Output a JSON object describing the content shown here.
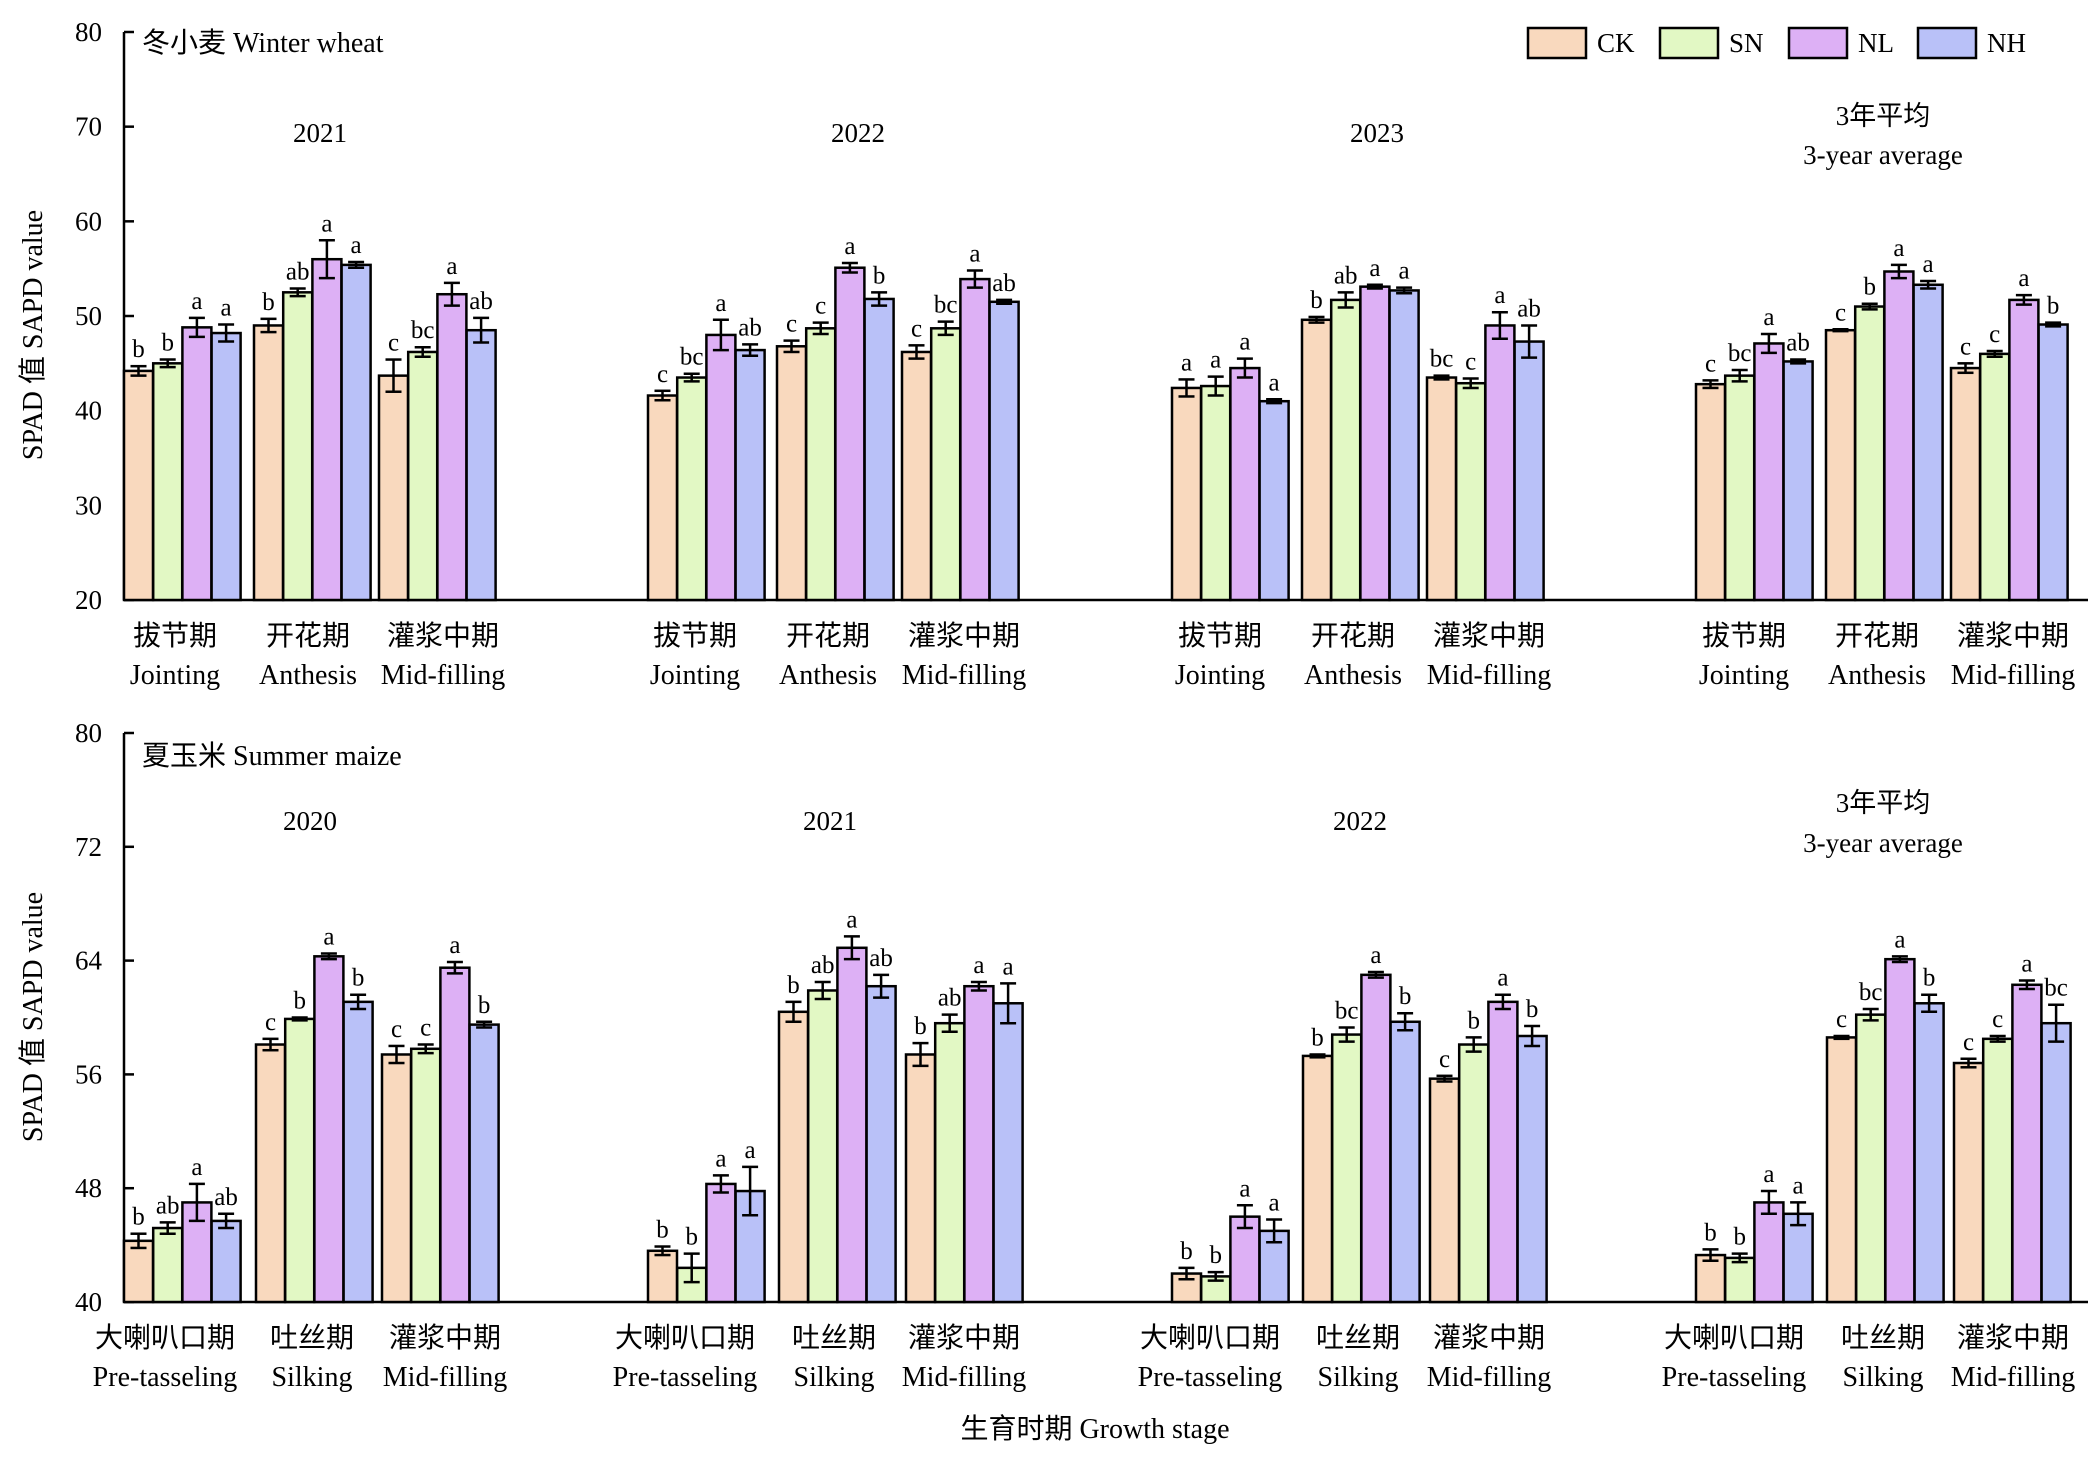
{
  "figure": {
    "xlabel": "生育时期 Growth stage",
    "ylabel": "SPAD 值 SAPD value"
  },
  "legend": {
    "placement": "top-right",
    "items": [
      {
        "name": "CK",
        "color": "#F9D9BE"
      },
      {
        "name": "SN",
        "color": "#E2F8C4"
      },
      {
        "name": "NL",
        "color": "#DDB0F5"
      },
      {
        "name": "NH",
        "color": "#B9C1F8"
      }
    ]
  },
  "chart_data": [
    {
      "type": "bar",
      "title": "冬小麦 Winter wheat",
      "ylabel": "SPAD 值 SAPD value",
      "ylim": [
        20,
        80
      ],
      "yticks": [
        20,
        30,
        40,
        50,
        60,
        70,
        80
      ],
      "series_names": [
        "CK",
        "SN",
        "NL",
        "NH"
      ],
      "panels": [
        {
          "label": [
            "2021"
          ],
          "stages": [
            {
              "zh": "拔节期",
              "en": "Jointing",
              "values": [
                44.2,
                45.0,
                48.8,
                48.2
              ],
              "errors": [
                0.5,
                0.4,
                1.0,
                0.9
              ],
              "letters": [
                "b",
                "b",
                "a",
                "a"
              ]
            },
            {
              "zh": "开花期",
              "en": "Anthesis",
              "values": [
                49.0,
                52.5,
                56.0,
                55.4
              ],
              "errors": [
                0.7,
                0.4,
                2.0,
                0.3
              ],
              "letters": [
                "b",
                "ab",
                "a",
                "a"
              ]
            },
            {
              "zh": "灌浆中期",
              "en": "Mid-filling",
              "values": [
                43.7,
                46.2,
                52.3,
                48.5
              ],
              "errors": [
                1.7,
                0.5,
                1.2,
                1.3
              ],
              "letters": [
                "c",
                "bc",
                "a",
                "ab"
              ]
            }
          ]
        },
        {
          "label": [
            "2022"
          ],
          "stages": [
            {
              "zh": "拔节期",
              "en": "Jointing",
              "values": [
                41.6,
                43.5,
                48.0,
                46.4
              ],
              "errors": [
                0.5,
                0.4,
                1.6,
                0.6
              ],
              "letters": [
                "c",
                "bc",
                "a",
                "ab"
              ]
            },
            {
              "zh": "开花期",
              "en": "Anthesis",
              "values": [
                46.8,
                48.7,
                55.1,
                51.8
              ],
              "errors": [
                0.6,
                0.6,
                0.5,
                0.7
              ],
              "letters": [
                "c",
                "c",
                "a",
                "b"
              ]
            },
            {
              "zh": "灌浆中期",
              "en": "Mid-filling",
              "values": [
                46.2,
                48.7,
                53.9,
                51.5
              ],
              "errors": [
                0.7,
                0.7,
                0.9,
                0.2
              ],
              "letters": [
                "c",
                "bc",
                "a",
                "ab"
              ]
            }
          ]
        },
        {
          "label": [
            "2023"
          ],
          "stages": [
            {
              "zh": "拔节期",
              "en": "Jointing",
              "values": [
                42.4,
                42.6,
                44.5,
                41.0
              ],
              "errors": [
                0.9,
                1.0,
                1.0,
                0.2
              ],
              "letters": [
                "a",
                "a",
                "a",
                "a"
              ]
            },
            {
              "zh": "开花期",
              "en": "Anthesis",
              "values": [
                49.6,
                51.7,
                53.1,
                52.7
              ],
              "errors": [
                0.3,
                0.8,
                0.2,
                0.3
              ],
              "letters": [
                "b",
                "ab",
                "a",
                "a"
              ]
            },
            {
              "zh": "灌浆中期",
              "en": "Mid-filling",
              "values": [
                43.5,
                42.9,
                49.0,
                47.3
              ],
              "errors": [
                0.2,
                0.5,
                1.4,
                1.7
              ],
              "letters": [
                "bc",
                "c",
                "a",
                "ab"
              ]
            }
          ]
        },
        {
          "label": [
            "3年平均",
            "3-year average"
          ],
          "stages": [
            {
              "zh": "拔节期",
              "en": "Jointing",
              "values": [
                42.8,
                43.7,
                47.1,
                45.2
              ],
              "errors": [
                0.4,
                0.6,
                1.0,
                0.2
              ],
              "letters": [
                "c",
                "bc",
                "a",
                "ab"
              ]
            },
            {
              "zh": "开花期",
              "en": "Anthesis",
              "values": [
                48.5,
                51.0,
                54.7,
                53.3
              ],
              "errors": [
                0.1,
                0.3,
                0.7,
                0.4
              ],
              "letters": [
                "c",
                "b",
                "a",
                "a"
              ]
            },
            {
              "zh": "灌浆中期",
              "en": "Mid-filling",
              "values": [
                44.5,
                46.0,
                51.7,
                49.1
              ],
              "errors": [
                0.5,
                0.3,
                0.5,
                0.2
              ],
              "letters": [
                "c",
                "c",
                "a",
                "b"
              ]
            }
          ]
        }
      ]
    },
    {
      "type": "bar",
      "title": "夏玉米 Summer maize",
      "ylabel": "SPAD 值 SAPD value",
      "ylim": [
        40,
        80
      ],
      "yticks": [
        40,
        48,
        56,
        64,
        72,
        80
      ],
      "series_names": [
        "CK",
        "SN",
        "NL",
        "NH"
      ],
      "panels": [
        {
          "label": [
            "2020"
          ],
          "stages": [
            {
              "zh": "大喇叭口期",
              "en": "Pre-tasseling",
              "values": [
                44.3,
                45.2,
                47.0,
                45.7
              ],
              "errors": [
                0.5,
                0.4,
                1.3,
                0.5
              ],
              "letters": [
                "b",
                "ab",
                "a",
                "ab"
              ]
            },
            {
              "zh": "吐丝期",
              "en": "Silking",
              "values": [
                58.1,
                59.9,
                64.3,
                61.1
              ],
              "errors": [
                0.4,
                0.1,
                0.2,
                0.5
              ],
              "letters": [
                "c",
                "b",
                "a",
                "b"
              ]
            },
            {
              "zh": "灌浆中期",
              "en": "Mid-filling",
              "values": [
                57.4,
                57.8,
                63.5,
                59.5
              ],
              "errors": [
                0.6,
                0.3,
                0.4,
                0.2
              ],
              "letters": [
                "c",
                "c",
                "a",
                "b"
              ]
            }
          ]
        },
        {
          "label": [
            "2021"
          ],
          "stages": [
            {
              "zh": "大喇叭口期",
              "en": "Pre-tasseling",
              "values": [
                43.6,
                42.4,
                48.3,
                47.8
              ],
              "errors": [
                0.3,
                1.0,
                0.6,
                1.7
              ],
              "letters": [
                "b",
                "b",
                "a",
                "a"
              ]
            },
            {
              "zh": "吐丝期",
              "en": "Silking",
              "values": [
                60.4,
                61.9,
                64.9,
                62.2
              ],
              "errors": [
                0.7,
                0.6,
                0.8,
                0.8
              ],
              "letters": [
                "b",
                "ab",
                "a",
                "ab"
              ]
            },
            {
              "zh": "灌浆中期",
              "en": "Mid-filling",
              "values": [
                57.4,
                59.6,
                62.2,
                61.0
              ],
              "errors": [
                0.8,
                0.6,
                0.3,
                1.4
              ],
              "letters": [
                "b",
                "ab",
                "a",
                "a"
              ]
            }
          ]
        },
        {
          "label": [
            "2022"
          ],
          "stages": [
            {
              "zh": "大喇叭口期",
              "en": "Pre-tasseling",
              "values": [
                42.0,
                41.8,
                46.0,
                45.0
              ],
              "errors": [
                0.4,
                0.3,
                0.8,
                0.8
              ],
              "letters": [
                "b",
                "b",
                "a",
                "a"
              ]
            },
            {
              "zh": "吐丝期",
              "en": "Silking",
              "values": [
                57.3,
                58.8,
                63.0,
                59.7
              ],
              "errors": [
                0.1,
                0.5,
                0.2,
                0.6
              ],
              "letters": [
                "b",
                "bc",
                "a",
                "b"
              ]
            },
            {
              "zh": "灌浆中期",
              "en": "Mid-filling",
              "values": [
                55.7,
                58.1,
                61.1,
                58.7
              ],
              "errors": [
                0.2,
                0.5,
                0.5,
                0.7
              ],
              "letters": [
                "c",
                "b",
                "a",
                "b"
              ]
            }
          ]
        },
        {
          "label": [
            "3年平均",
            "3-year average"
          ],
          "stages": [
            {
              "zh": "大喇叭口期",
              "en": "Pre-tasseling",
              "values": [
                43.3,
                43.1,
                47.0,
                46.2
              ],
              "errors": [
                0.4,
                0.3,
                0.8,
                0.8
              ],
              "letters": [
                "b",
                "b",
                "a",
                "a"
              ]
            },
            {
              "zh": "吐丝期",
              "en": "Silking",
              "values": [
                58.6,
                60.2,
                64.1,
                61.0
              ],
              "errors": [
                0.1,
                0.4,
                0.2,
                0.6
              ],
              "letters": [
                "c",
                "bc",
                "a",
                "b"
              ]
            },
            {
              "zh": "灌浆中期",
              "en": "Mid-filling",
              "values": [
                56.8,
                58.5,
                62.3,
                59.6
              ],
              "errors": [
                0.3,
                0.2,
                0.3,
                1.3
              ],
              "letters": [
                "c",
                "c",
                "a",
                "bc"
              ]
            }
          ]
        }
      ]
    }
  ]
}
